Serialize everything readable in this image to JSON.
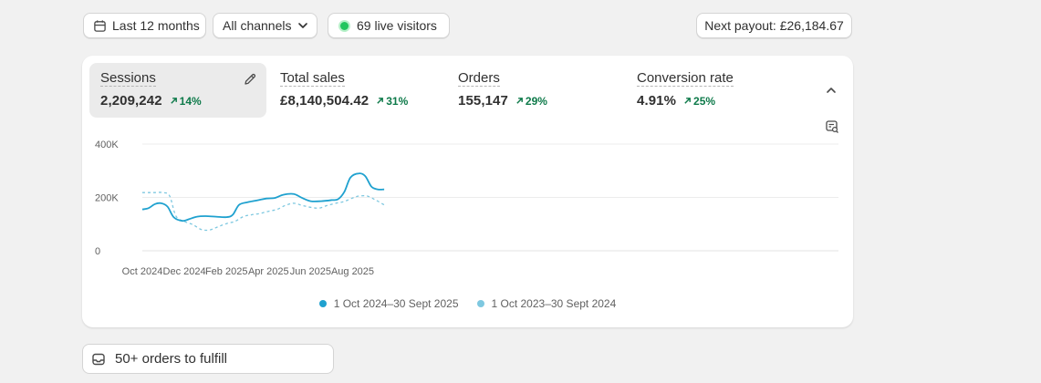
{
  "toolbar": {
    "date_range": "Last 12 months",
    "channels": "All channels",
    "live_visitors": "69 live visitors",
    "payout": "Next payout: £26,184.67"
  },
  "metrics": [
    {
      "label": "Sessions",
      "value": "2,209,242",
      "delta": "14%"
    },
    {
      "label": "Total sales",
      "value": "£8,140,504.42",
      "delta": "31%"
    },
    {
      "label": "Orders",
      "value": "155,147",
      "delta": "29%"
    },
    {
      "label": "Conversion rate",
      "value": "4.91%",
      "delta": "25%"
    }
  ],
  "chart_data": {
    "type": "line",
    "title": "Sessions",
    "y_ticks": [
      "400K",
      "200K",
      "0"
    ],
    "ylim": [
      0,
      400000
    ],
    "x_ticks": [
      "Oct 2024",
      "Dec 2024",
      "Feb 2025",
      "Apr 2025",
      "Jun 2025",
      "Aug 2025"
    ],
    "series": [
      {
        "name": "1 Oct 2024–30 Sept 2025",
        "color": "#1fa1cf",
        "style": "solid",
        "points": [
          [
            0,
            155000
          ],
          [
            0.3,
            160000
          ],
          [
            0.6,
            175000
          ],
          [
            0.9,
            178000
          ],
          [
            1.2,
            165000
          ],
          [
            1.5,
            125000
          ],
          [
            1.9,
            112000
          ],
          [
            2.2,
            118000
          ],
          [
            2.6,
            128000
          ],
          [
            3.0,
            130000
          ],
          [
            3.5,
            128000
          ],
          [
            4.0,
            126000
          ],
          [
            4.3,
            135000
          ],
          [
            4.6,
            172000
          ],
          [
            5.0,
            182000
          ],
          [
            5.4,
            188000
          ],
          [
            5.9,
            196000
          ],
          [
            6.3,
            198000
          ],
          [
            6.7,
            210000
          ],
          [
            7.2,
            213000
          ],
          [
            7.6,
            198000
          ],
          [
            8.0,
            186000
          ],
          [
            8.5,
            186000
          ],
          [
            9.0,
            190000
          ],
          [
            9.3,
            193000
          ],
          [
            9.6,
            220000
          ],
          [
            9.9,
            275000
          ],
          [
            10.3,
            290000
          ],
          [
            10.6,
            280000
          ],
          [
            10.9,
            240000
          ],
          [
            11.2,
            230000
          ],
          [
            11.5,
            230000
          ]
        ]
      },
      {
        "name": "1 Oct 2023–30 Sept 2024",
        "color": "#7ec8e0",
        "style": "dashed",
        "points": [
          [
            0,
            218000
          ],
          [
            0.5,
            218000
          ],
          [
            1.0,
            218000
          ],
          [
            1.3,
            205000
          ],
          [
            1.6,
            130000
          ],
          [
            2.0,
            110000
          ],
          [
            2.4,
            98000
          ],
          [
            2.8,
            80000
          ],
          [
            3.2,
            78000
          ],
          [
            3.6,
            90000
          ],
          [
            4.0,
            102000
          ],
          [
            4.4,
            110000
          ],
          [
            4.8,
            128000
          ],
          [
            5.2,
            135000
          ],
          [
            5.6,
            140000
          ],
          [
            6.0,
            148000
          ],
          [
            6.4,
            155000
          ],
          [
            6.8,
            170000
          ],
          [
            7.2,
            178000
          ],
          [
            7.6,
            170000
          ],
          [
            8.0,
            163000
          ],
          [
            8.4,
            160000
          ],
          [
            8.8,
            170000
          ],
          [
            9.2,
            178000
          ],
          [
            9.6,
            185000
          ],
          [
            10.0,
            198000
          ],
          [
            10.3,
            205000
          ],
          [
            10.7,
            205000
          ],
          [
            11.1,
            190000
          ],
          [
            11.5,
            172000
          ]
        ]
      }
    ]
  },
  "legend": {
    "current": "1 Oct 2024–30 Sept 2025",
    "previous": "1 Oct 2023–30 Sept 2024"
  },
  "fulfill": {
    "label": "50+ orders to fulfill"
  }
}
